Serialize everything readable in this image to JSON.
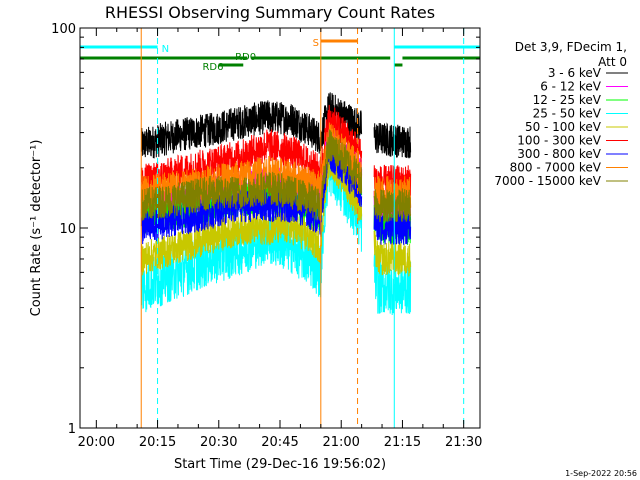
{
  "chart_data": {
    "type": "line",
    "title": "RHESSI Observing Summary Count Rates",
    "xlabel": "Start Time (29-Dec-16 19:56:02)",
    "ylabel": "Count Rate (s⁻¹ detector⁻¹)",
    "xlim": [
      "19:56",
      "21:34"
    ],
    "ylim": [
      1,
      100
    ],
    "yscale": "log",
    "x_ticks": [
      "20:00",
      "20:15",
      "20:30",
      "20:45",
      "21:00",
      "21:15",
      "21:30"
    ],
    "y_ticks": [
      "1",
      "10",
      "100"
    ],
    "legend_title": [
      "Det 3,9, FDecim 1,",
      "Att 0"
    ],
    "legend_position": "right",
    "data_gaps": [
      [
        "19:56",
        "20:11"
      ],
      [
        "21:05",
        "21:08"
      ],
      [
        "21:17",
        "21:34"
      ]
    ],
    "series": [
      {
        "name": "3 - 6 keV",
        "color": "#000000",
        "values": [
          26,
          29,
          31,
          34,
          36,
          35,
          31,
          28,
          40,
          28,
          27
        ]
      },
      {
        "name": "6 - 12 keV",
        "color": "#ff00ff",
        "values": [
          12,
          14,
          15,
          16,
          17,
          16,
          15,
          14,
          30,
          12,
          12
        ]
      },
      {
        "name": "12 - 25 keV",
        "color": "#00ff00",
        "values": [
          11,
          12,
          13,
          14,
          14,
          13,
          12,
          11,
          25,
          10,
          10
        ]
      },
      {
        "name": "25 - 50 keV",
        "color": "#00ffff",
        "values": [
          5,
          6,
          7,
          8,
          9,
          8,
          7,
          6,
          20,
          5,
          5
        ]
      },
      {
        "name": "50 - 100 keV",
        "color": "#c8c800",
        "values": [
          7,
          8,
          9,
          10,
          10,
          10,
          9,
          8,
          22,
          7,
          7
        ]
      },
      {
        "name": "100 - 300 keV",
        "color": "#ff0000",
        "values": [
          17,
          19,
          21,
          23,
          26,
          24,
          21,
          19,
          35,
          17,
          17
        ]
      },
      {
        "name": "300 - 800 keV",
        "color": "#0000ff",
        "values": [
          10,
          11,
          12,
          13,
          13,
          13,
          12,
          11,
          24,
          10,
          10
        ]
      },
      {
        "name": "800 - 7000 keV",
        "color": "#ff8000",
        "values": [
          15,
          16,
          17,
          18,
          19,
          18,
          17,
          16,
          28,
          15,
          15
        ]
      },
      {
        "name": "7000 - 15000 keV",
        "color": "#808000",
        "values": [
          13,
          14,
          15,
          15,
          16,
          15,
          14,
          13,
          26,
          13,
          13
        ]
      }
    ],
    "x": [
      "20:11",
      "20:20",
      "20:28",
      "20:36",
      "20:42",
      "20:48",
      "20:52",
      "20:55",
      "20:57",
      "21:09",
      "21:16"
    ],
    "flag_bars": [
      {
        "label": "N",
        "color": "#00ffff",
        "segments": [
          [
            "19:56",
            "20:15"
          ],
          [
            "21:13",
            "21:34"
          ]
        ]
      },
      {
        "label": "S",
        "color": "#ff8000",
        "segments": [
          [
            "20:55",
            "21:04"
          ]
        ]
      },
      {
        "label": "RD0",
        "color": "#008000",
        "segments": [
          [
            "19:56",
            "20:37"
          ],
          [
            "20:38",
            "21:12"
          ],
          [
            "21:15",
            "21:34"
          ]
        ]
      },
      {
        "label": "RD6",
        "color": "#008000",
        "segments": [
          [
            "20:30",
            "20:36"
          ],
          [
            "21:13",
            "21:15"
          ]
        ]
      }
    ],
    "vertical_lines": [
      {
        "x": "20:15",
        "color": "#00ffff",
        "style": "dashed"
      },
      {
        "x": "20:55",
        "color": "#ff8000",
        "style": "solid"
      },
      {
        "x": "21:04",
        "color": "#ff8000",
        "style": "dashed"
      },
      {
        "x": "21:13",
        "color": "#00ffff",
        "style": "solid"
      },
      {
        "x": "21:30",
        "color": "#00ffff",
        "style": "dashed"
      },
      {
        "x": "20:11",
        "color": "#ff8000",
        "style": "solid"
      }
    ]
  },
  "footer_date": "1-Sep-2022 20:56"
}
